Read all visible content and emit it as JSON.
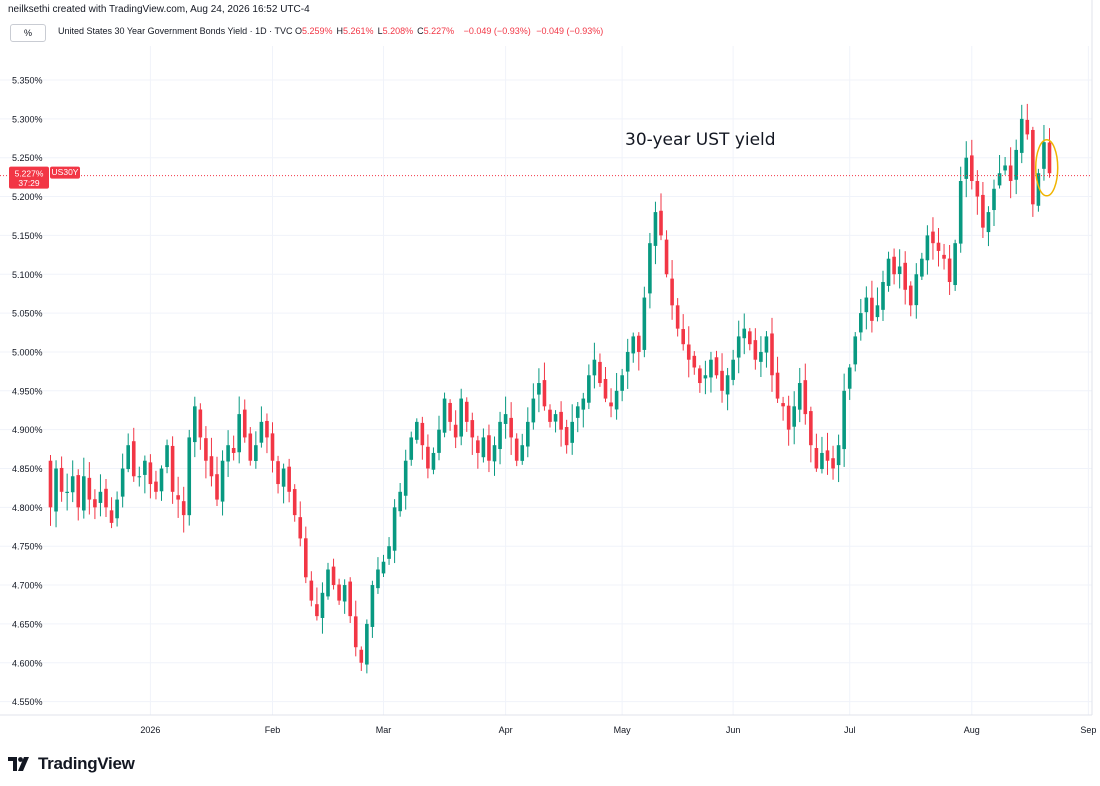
{
  "header": {
    "credit": "neilksethi created with TradingView.com, Aug 24, 2026 16:52 UTC-4",
    "unit_button": "%",
    "symbol_desc": "United States 30 Year Government Bonds Yield · 1D · TVC",
    "ohlc": [
      {
        "label": "O",
        "value": "5.259%"
      },
      {
        "label": "H",
        "value": "5.261%"
      },
      {
        "label": "L",
        "value": "5.208%"
      },
      {
        "label": "C",
        "value": "5.227%"
      }
    ],
    "change1": "−0.049 (−0.93%)",
    "change2": "−0.049 (−0.93%)"
  },
  "price_badge": {
    "price": "5.227%",
    "ticker": "US30Y",
    "countdown": "37:29"
  },
  "annotation": "30-year UST yield",
  "footer": {
    "brand": "TradingView",
    "logo_icon": "tradingview-logo-icon"
  },
  "colors": {
    "up": "#089981",
    "down": "#f23645",
    "grid": "#f0f3fa",
    "axis_text": "#131722",
    "highlight": "#f0b400"
  },
  "chart_data": {
    "type": "candlestick",
    "series_name": "US30Y",
    "y_unit": "%",
    "ylim": [
      4.525,
      5.375
    ],
    "y_ticks": [
      "4.550%",
      "4.600%",
      "4.650%",
      "4.700%",
      "4.750%",
      "4.800%",
      "4.850%",
      "4.900%",
      "4.950%",
      "5.000%",
      "5.050%",
      "5.100%",
      "5.150%",
      "5.200%",
      "5.250%",
      "5.300%",
      "5.350%"
    ],
    "y_tick_values": [
      4.55,
      4.6,
      4.65,
      4.7,
      4.75,
      4.8,
      4.85,
      4.9,
      4.95,
      5.0,
      5.05,
      5.1,
      5.15,
      5.2,
      5.25,
      5.3,
      5.35
    ],
    "x_ticks": [
      {
        "label": "2026",
        "index": 18
      },
      {
        "label": "Feb",
        "index": 40
      },
      {
        "label": "Mar",
        "index": 60
      },
      {
        "label": "Apr",
        "index": 82
      },
      {
        "label": "May",
        "index": 103
      },
      {
        "label": "Jun",
        "index": 123
      },
      {
        "label": "Jul",
        "index": 144
      },
      {
        "label": "Aug",
        "index": 166
      },
      {
        "label": "Sep",
        "index": 187
      }
    ],
    "current_price": 5.227,
    "highlighted_last_candles": 2,
    "grid": true,
    "closes": [
      4.8,
      4.85,
      4.82,
      4.82,
      4.84,
      4.8,
      4.84,
      4.81,
      4.8,
      4.82,
      4.8,
      4.78,
      4.81,
      4.85,
      4.88,
      4.84,
      4.84,
      4.86,
      4.83,
      4.82,
      4.85,
      4.88,
      4.82,
      4.81,
      4.79,
      4.89,
      4.93,
      4.89,
      4.86,
      4.84,
      4.81,
      4.86,
      4.88,
      4.87,
      4.92,
      4.89,
      4.86,
      4.88,
      4.91,
      4.89,
      4.86,
      4.83,
      4.85,
      4.82,
      4.79,
      4.76,
      4.71,
      4.68,
      4.66,
      4.69,
      4.72,
      4.7,
      4.68,
      4.7,
      4.66,
      4.62,
      4.6,
      4.65,
      4.7,
      4.72,
      4.73,
      4.75,
      4.8,
      4.82,
      4.86,
      4.89,
      4.91,
      4.88,
      4.85,
      4.87,
      4.9,
      4.94,
      4.91,
      4.89,
      4.94,
      4.91,
      4.89,
      4.87,
      4.89,
      4.86,
      4.88,
      4.91,
      4.92,
      4.89,
      4.86,
      4.88,
      4.91,
      4.94,
      4.96,
      4.93,
      4.91,
      4.92,
      4.9,
      4.88,
      4.91,
      4.93,
      4.94,
      4.97,
      4.99,
      4.96,
      4.94,
      4.93,
      4.95,
      4.97,
      5.0,
      5.02,
      5.0,
      5.07,
      5.14,
      5.18,
      5.15,
      5.1,
      5.06,
      5.03,
      5.01,
      4.99,
      4.98,
      4.96,
      4.97,
      4.99,
      4.97,
      4.95,
      4.97,
      4.99,
      5.02,
      5.03,
      5.01,
      4.99,
      5.0,
      5.02,
      4.97,
      4.94,
      4.93,
      4.9,
      4.93,
      4.96,
      4.92,
      4.88,
      4.85,
      4.87,
      4.86,
      4.85,
      4.88,
      4.95,
      4.98,
      5.02,
      5.05,
      5.07,
      5.04,
      5.06,
      5.09,
      5.12,
      5.1,
      5.11,
      5.08,
      5.06,
      5.1,
      5.12,
      5.15,
      5.14,
      5.13,
      5.12,
      5.09,
      5.14,
      5.22,
      5.25,
      5.22,
      5.2,
      5.16,
      5.18,
      5.21,
      5.23,
      5.24,
      5.22,
      5.26,
      5.3,
      5.28,
      5.19,
      5.23,
      5.27,
      5.23
    ]
  }
}
